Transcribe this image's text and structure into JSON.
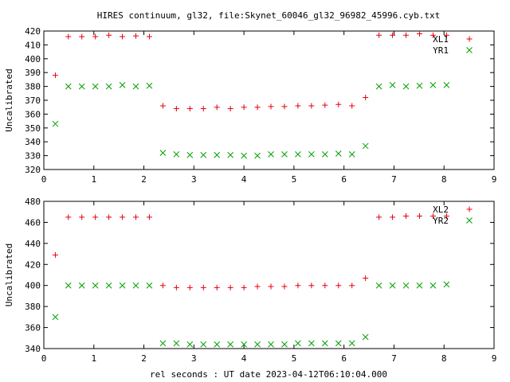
{
  "title": "HIRES continuum, gl32, file:Skynet_60046_gl32_96982_45996.cyb.txt",
  "xlabel": "rel seconds : UT date 2023-04-12T06:10:04.000",
  "colors": {
    "red": "#e8000b",
    "green": "#00a000",
    "axis": "#000000"
  },
  "chart_data": [
    {
      "type": "scatter",
      "ylabel": "Uncalibrated",
      "xlim": [
        0,
        9
      ],
      "ylim": [
        320,
        420
      ],
      "xticks": [
        0,
        1,
        2,
        3,
        4,
        5,
        6,
        7,
        8,
        9
      ],
      "yticks": [
        320,
        330,
        340,
        350,
        360,
        370,
        380,
        390,
        400,
        410,
        420
      ],
      "grid": false,
      "legend": "top-right",
      "x": [
        0.23,
        0.49,
        0.76,
        1.03,
        1.3,
        1.57,
        1.84,
        2.11,
        2.38,
        2.65,
        2.92,
        3.19,
        3.46,
        3.73,
        4.0,
        4.27,
        4.54,
        4.81,
        5.08,
        5.35,
        5.62,
        5.89,
        6.16,
        6.43,
        6.7,
        6.97,
        7.24,
        7.51,
        7.78,
        8.05
      ],
      "series": [
        {
          "name": "XL1",
          "marker": "+",
          "color": "#e8000b",
          "values": [
            388,
            416,
            416,
            416,
            417,
            416,
            416.5,
            416,
            366,
            364,
            364,
            364,
            365,
            364,
            365,
            365,
            365.5,
            365.5,
            366,
            366,
            366.5,
            367,
            366,
            372,
            417,
            417,
            417,
            418,
            417,
            417
          ]
        },
        {
          "name": "YR1",
          "marker": "x",
          "color": "#00a000",
          "values": [
            353,
            380,
            380,
            380,
            380,
            381,
            380,
            380.5,
            332,
            331,
            330.5,
            330.5,
            330.5,
            330.5,
            330,
            330,
            331,
            331,
            331,
            331,
            331,
            331.5,
            331,
            337,
            380,
            381,
            380,
            380.5,
            381,
            381
          ]
        }
      ]
    },
    {
      "type": "scatter",
      "ylabel": "Uncalibrated",
      "xlim": [
        0,
        9
      ],
      "ylim": [
        340,
        480
      ],
      "xticks": [
        0,
        1,
        2,
        3,
        4,
        5,
        6,
        7,
        8,
        9
      ],
      "yticks": [
        340,
        360,
        380,
        400,
        420,
        440,
        460,
        480
      ],
      "grid": false,
      "legend": "top-right",
      "x": [
        0.23,
        0.49,
        0.76,
        1.03,
        1.3,
        1.57,
        1.84,
        2.11,
        2.38,
        2.65,
        2.92,
        3.19,
        3.46,
        3.73,
        4.0,
        4.27,
        4.54,
        4.81,
        5.08,
        5.35,
        5.62,
        5.89,
        6.16,
        6.43,
        6.7,
        6.97,
        7.24,
        7.51,
        7.78,
        8.05
      ],
      "series": [
        {
          "name": "XL2",
          "marker": "+",
          "color": "#e8000b",
          "values": [
            429,
            465,
            465,
            465,
            465,
            465,
            465,
            465,
            400,
            398,
            398,
            398,
            398,
            398,
            398,
            399,
            399,
            399,
            400,
            400,
            400,
            400,
            400,
            407,
            465,
            465,
            466,
            466,
            466,
            466
          ]
        },
        {
          "name": "YR2",
          "marker": "x",
          "color": "#00a000",
          "values": [
            370,
            400,
            400,
            400,
            400,
            400,
            400,
            400,
            345,
            345,
            344,
            344,
            344,
            344,
            344,
            344,
            344,
            344,
            345,
            345,
            345,
            345,
            345,
            351,
            400,
            400,
            400,
            400,
            400,
            401
          ]
        }
      ]
    }
  ]
}
